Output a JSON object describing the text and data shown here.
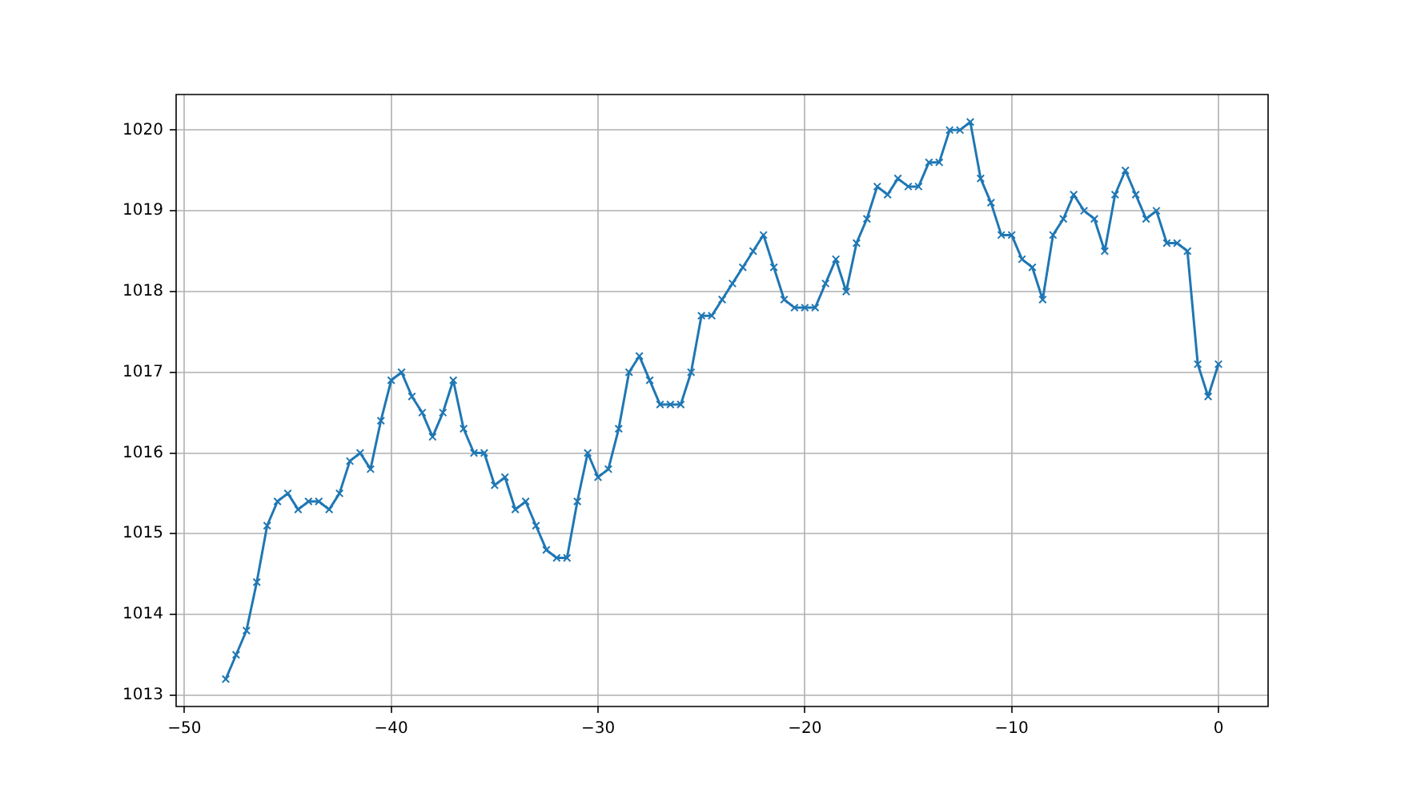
{
  "chart_data": {
    "type": "line",
    "x": [
      -48,
      -47.5,
      -47,
      -46.5,
      -46,
      -45.5,
      -45,
      -44.5,
      -44,
      -43.5,
      -43,
      -42.5,
      -42,
      -41.5,
      -41,
      -40.5,
      -40,
      -39.5,
      -39,
      -38.5,
      -38,
      -37.5,
      -37,
      -36.5,
      -36,
      -35.5,
      -35,
      -34.5,
      -34,
      -33.5,
      -33,
      -32.5,
      -32,
      -31.5,
      -31,
      -30.5,
      -30,
      -29.5,
      -29,
      -28.5,
      -28,
      -27.5,
      -27,
      -26.5,
      -26,
      -25.5,
      -25,
      -24.5,
      -24,
      -23.5,
      -23,
      -22.5,
      -22,
      -21.5,
      -21,
      -20.5,
      -20,
      -19.5,
      -19,
      -18.5,
      -18,
      -17.5,
      -17,
      -16.5,
      -16,
      -15.5,
      -15,
      -14.5,
      -14,
      -13.5,
      -13,
      -12.5,
      -12,
      -11.5,
      -11,
      -10.5,
      -10,
      -9.5,
      -9,
      -8.5,
      -8,
      -7.5,
      -7,
      -6.5,
      -6,
      -5.5,
      -5,
      -4.5,
      -4,
      -3.5,
      -3,
      -2.5,
      -2,
      -1.5,
      -1,
      -0.5,
      0
    ],
    "values": [
      1013.2,
      1013.5,
      1013.8,
      1014.4,
      1015.1,
      1015.4,
      1015.5,
      1015.3,
      1015.4,
      1015.4,
      1015.3,
      1015.5,
      1015.9,
      1016.0,
      1015.8,
      1016.4,
      1016.9,
      1017.0,
      1016.7,
      1016.5,
      1016.2,
      1016.5,
      1016.9,
      1016.3,
      1016.0,
      1016.0,
      1015.6,
      1015.7,
      1015.3,
      1015.4,
      1015.1,
      1014.8,
      1014.7,
      1014.7,
      1015.4,
      1016.0,
      1015.7,
      1015.8,
      1016.3,
      1017.0,
      1017.2,
      1016.9,
      1016.6,
      1016.6,
      1016.6,
      1017.0,
      1017.7,
      1017.7,
      1017.9,
      1018.1,
      1018.3,
      1018.5,
      1018.7,
      1018.3,
      1017.9,
      1017.8,
      1017.8,
      1017.8,
      1018.1,
      1018.4,
      1018.0,
      1018.6,
      1018.9,
      1019.3,
      1019.2,
      1019.4,
      1019.3,
      1019.3,
      1019.6,
      1019.6,
      1020.0,
      1020.0,
      1020.1,
      1019.4,
      1019.1,
      1018.7,
      1018.7,
      1018.4,
      1018.3,
      1017.9,
      1018.7,
      1018.9,
      1019.2,
      1019.0,
      1018.9,
      1018.5,
      1019.2,
      1019.5,
      1019.2,
      1018.9,
      1019.0,
      1018.6,
      1018.6,
      1018.5,
      1017.1,
      1016.7,
      1017.1
    ],
    "color": "#1f77b4",
    "marker": "cross",
    "line_style": "solid",
    "grid": true,
    "xlim": [
      -50.4,
      2.4
    ],
    "ylim": [
      1012.86,
      1020.44
    ],
    "xticks": [
      {
        "value": -50,
        "label": "−50"
      },
      {
        "value": -40,
        "label": "−40"
      },
      {
        "value": -30,
        "label": "−30"
      },
      {
        "value": -20,
        "label": "−20"
      },
      {
        "value": -10,
        "label": "−10"
      },
      0
    ],
    "yticks": [
      1013,
      1014,
      1015,
      1016,
      1017,
      1018,
      1019,
      1020
    ]
  }
}
